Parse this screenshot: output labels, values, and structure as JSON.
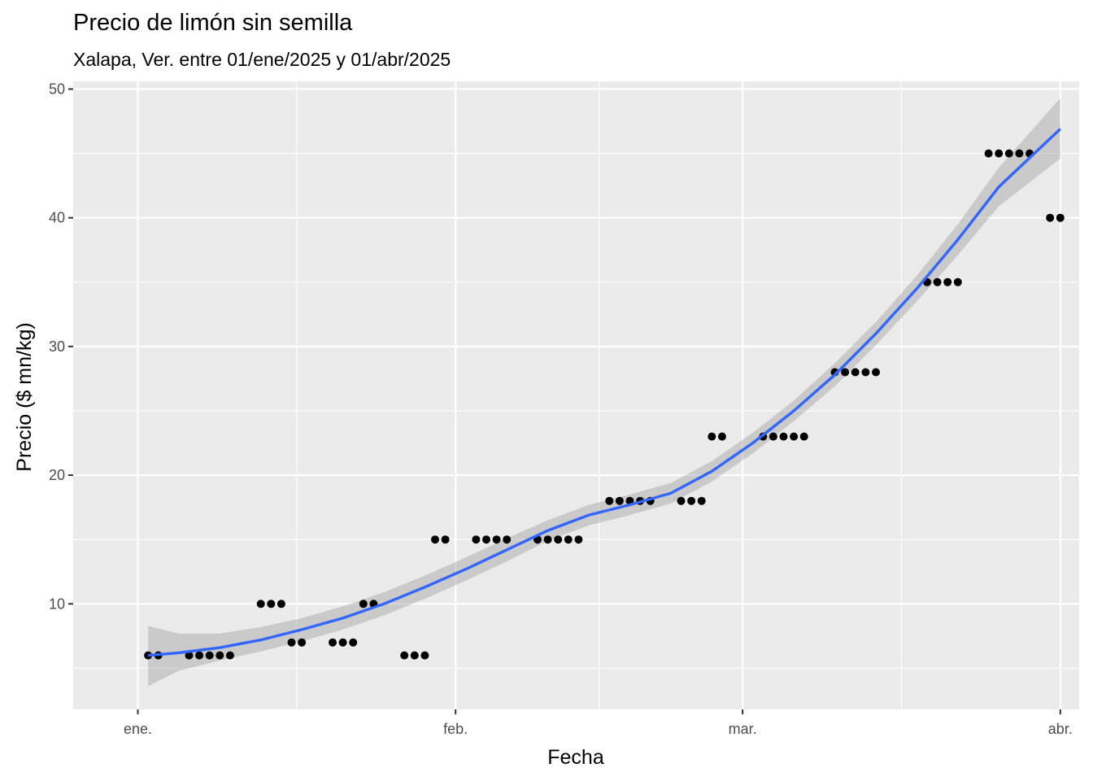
{
  "chart_data": {
    "type": "scatter",
    "title": "Precio de limón sin semilla",
    "subtitle": "Xalapa, Ver. entre 01/ene/2025 y 01/abr/2025",
    "xlabel": "Fecha",
    "ylabel": "Precio ($ mn/kg)",
    "xlim": [
      "2024-12-28",
      "2025-04-01"
    ],
    "ylim": [
      1.8,
      50.6
    ],
    "x_ticks": [
      {
        "date": "2025-01-01",
        "label": "ene."
      },
      {
        "date": "2025-02-01",
        "label": "feb."
      },
      {
        "date": "2025-03-01",
        "label": "mar."
      },
      {
        "date": "2025-04-01",
        "label": "abr."
      }
    ],
    "y_ticks": [
      10,
      20,
      30,
      40,
      50
    ],
    "grid": true,
    "points": [
      {
        "x": "2025-01-02",
        "y": 6
      },
      {
        "x": "2025-01-03",
        "y": 6
      },
      {
        "x": "2025-01-06",
        "y": 6
      },
      {
        "x": "2025-01-07",
        "y": 6
      },
      {
        "x": "2025-01-08",
        "y": 6
      },
      {
        "x": "2025-01-09",
        "y": 6
      },
      {
        "x": "2025-01-10",
        "y": 6
      },
      {
        "x": "2025-01-13",
        "y": 10
      },
      {
        "x": "2025-01-14",
        "y": 10
      },
      {
        "x": "2025-01-15",
        "y": 10
      },
      {
        "x": "2025-01-16",
        "y": 7
      },
      {
        "x": "2025-01-17",
        "y": 7
      },
      {
        "x": "2025-01-20",
        "y": 7
      },
      {
        "x": "2025-01-21",
        "y": 7
      },
      {
        "x": "2025-01-22",
        "y": 7
      },
      {
        "x": "2025-01-23",
        "y": 10
      },
      {
        "x": "2025-01-24",
        "y": 10
      },
      {
        "x": "2025-01-27",
        "y": 6
      },
      {
        "x": "2025-01-28",
        "y": 6
      },
      {
        "x": "2025-01-29",
        "y": 6
      },
      {
        "x": "2025-01-30",
        "y": 15
      },
      {
        "x": "2025-01-31",
        "y": 15
      },
      {
        "x": "2025-02-03",
        "y": 15
      },
      {
        "x": "2025-02-04",
        "y": 15
      },
      {
        "x": "2025-02-05",
        "y": 15
      },
      {
        "x": "2025-02-06",
        "y": 15
      },
      {
        "x": "2025-02-09",
        "y": 15
      },
      {
        "x": "2025-02-10",
        "y": 15
      },
      {
        "x": "2025-02-11",
        "y": 15
      },
      {
        "x": "2025-02-12",
        "y": 15
      },
      {
        "x": "2025-02-13",
        "y": 15
      },
      {
        "x": "2025-02-16",
        "y": 18
      },
      {
        "x": "2025-02-17",
        "y": 18
      },
      {
        "x": "2025-02-18",
        "y": 18
      },
      {
        "x": "2025-02-19",
        "y": 18
      },
      {
        "x": "2025-02-20",
        "y": 18
      },
      {
        "x": "2025-02-23",
        "y": 18
      },
      {
        "x": "2025-02-24",
        "y": 18
      },
      {
        "x": "2025-02-25",
        "y": 18
      },
      {
        "x": "2025-02-26",
        "y": 23
      },
      {
        "x": "2025-02-27",
        "y": 23
      },
      {
        "x": "2025-03-03",
        "y": 23
      },
      {
        "x": "2025-03-04",
        "y": 23
      },
      {
        "x": "2025-03-05",
        "y": 23
      },
      {
        "x": "2025-03-06",
        "y": 23
      },
      {
        "x": "2025-03-07",
        "y": 23
      },
      {
        "x": "2025-03-10",
        "y": 28
      },
      {
        "x": "2025-03-11",
        "y": 28
      },
      {
        "x": "2025-03-12",
        "y": 28
      },
      {
        "x": "2025-03-13",
        "y": 28
      },
      {
        "x": "2025-03-14",
        "y": 28
      },
      {
        "x": "2025-03-19",
        "y": 35
      },
      {
        "x": "2025-03-20",
        "y": 35
      },
      {
        "x": "2025-03-21",
        "y": 35
      },
      {
        "x": "2025-03-22",
        "y": 35
      },
      {
        "x": "2025-03-25",
        "y": 45
      },
      {
        "x": "2025-03-26",
        "y": 45
      },
      {
        "x": "2025-03-27",
        "y": 45
      },
      {
        "x": "2025-03-28",
        "y": 45
      },
      {
        "x": "2025-03-29",
        "y": 45
      },
      {
        "x": "2025-03-31",
        "y": 40
      },
      {
        "x": "2025-04-01",
        "y": 40
      }
    ],
    "smooth": [
      {
        "x": "2025-01-02",
        "y": 6.0,
        "lo": 3.6,
        "hi": 8.3
      },
      {
        "x": "2025-01-05",
        "y": 6.2,
        "lo": 4.8,
        "hi": 7.7
      },
      {
        "x": "2025-01-09",
        "y": 6.6,
        "lo": 5.6,
        "hi": 7.7
      },
      {
        "x": "2025-01-13",
        "y": 7.2,
        "lo": 6.3,
        "hi": 8.2
      },
      {
        "x": "2025-01-17",
        "y": 8.0,
        "lo": 7.1,
        "hi": 8.9
      },
      {
        "x": "2025-01-21",
        "y": 8.9,
        "lo": 8.0,
        "hi": 9.8
      },
      {
        "x": "2025-01-25",
        "y": 10.0,
        "lo": 9.1,
        "hi": 10.9
      },
      {
        "x": "2025-01-29",
        "y": 11.3,
        "lo": 10.4,
        "hi": 12.2
      },
      {
        "x": "2025-02-02",
        "y": 12.7,
        "lo": 11.8,
        "hi": 13.6
      },
      {
        "x": "2025-02-06",
        "y": 14.2,
        "lo": 13.3,
        "hi": 15.1
      },
      {
        "x": "2025-02-10",
        "y": 15.7,
        "lo": 14.9,
        "hi": 16.5
      },
      {
        "x": "2025-02-14",
        "y": 16.9,
        "lo": 16.1,
        "hi": 17.7
      },
      {
        "x": "2025-02-18",
        "y": 17.7,
        "lo": 16.9,
        "hi": 18.5
      },
      {
        "x": "2025-02-22",
        "y": 18.6,
        "lo": 17.8,
        "hi": 19.4
      },
      {
        "x": "2025-02-26",
        "y": 20.3,
        "lo": 19.5,
        "hi": 21.1
      },
      {
        "x": "2025-03-02",
        "y": 22.5,
        "lo": 21.7,
        "hi": 23.3
      },
      {
        "x": "2025-03-06",
        "y": 25.0,
        "lo": 24.2,
        "hi": 25.8
      },
      {
        "x": "2025-03-10",
        "y": 27.8,
        "lo": 26.9,
        "hi": 28.7
      },
      {
        "x": "2025-03-14",
        "y": 31.0,
        "lo": 30.1,
        "hi": 31.9
      },
      {
        "x": "2025-03-18",
        "y": 34.5,
        "lo": 33.5,
        "hi": 35.5
      },
      {
        "x": "2025-03-22",
        "y": 38.3,
        "lo": 37.1,
        "hi": 39.5
      },
      {
        "x": "2025-03-26",
        "y": 42.4,
        "lo": 40.9,
        "hi": 43.9
      },
      {
        "x": "2025-04-01",
        "y": 46.9,
        "lo": 44.6,
        "hi": 49.3
      }
    ],
    "colors": {
      "panel": "#EBEBEB",
      "grid": "#FFFFFF",
      "point": "#000000",
      "smooth_line": "#3366FF",
      "ribbon": "#999999"
    }
  }
}
